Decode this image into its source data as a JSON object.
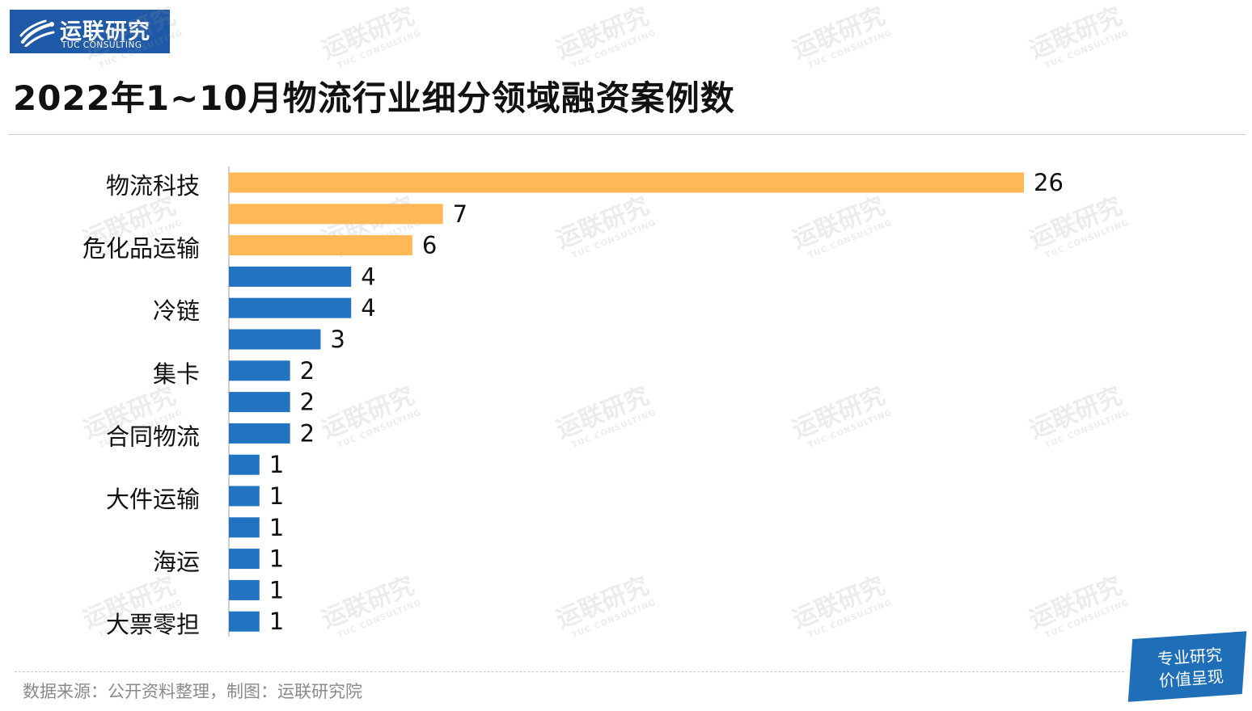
{
  "logo": {
    "cn": "运联研究",
    "en": "TUC CONSULTING"
  },
  "watermark": {
    "cn": "运联研究",
    "en": "TUC CONSULTING"
  },
  "chart_data": {
    "type": "bar",
    "orientation": "horizontal",
    "title": "2022年1~10月物流行业细分领域融资案例数",
    "categories": [
      "物流科技",
      "",
      "危化品运输",
      "",
      "冷链",
      "",
      "集卡",
      "",
      "合同物流",
      "",
      "大件运输",
      "",
      "海运",
      "",
      "大票零担"
    ],
    "values": [
      26,
      7,
      6,
      4,
      4,
      3,
      2,
      2,
      2,
      1,
      1,
      1,
      1,
      1,
      1
    ],
    "bar_colors": [
      "#ffb855",
      "#ffb855",
      "#ffb855",
      "#2273c2",
      "#2273c2",
      "#2273c2",
      "#2273c2",
      "#2273c2",
      "#2273c2",
      "#2273c2",
      "#2273c2",
      "#2273c2",
      "#2273c2",
      "#2273c2",
      "#2273c2"
    ],
    "xlim": [
      0,
      26
    ],
    "grid": false,
    "legend": "none",
    "data_labels": true
  },
  "colors": {
    "highlight": "#ffb855",
    "default": "#2273c2",
    "brand": "#1e5aa8"
  },
  "footer": {
    "source": "数据来源：公开资料整理，制图：运联研究院"
  },
  "badge": {
    "line1": "专业研究",
    "line2": "价值呈现"
  }
}
